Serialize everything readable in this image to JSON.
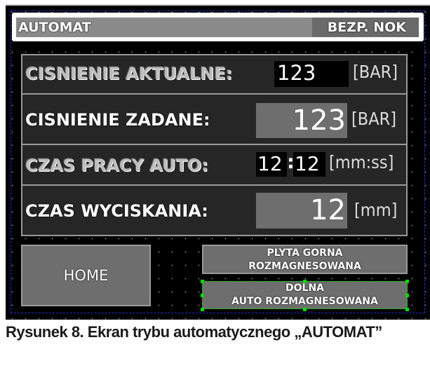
{
  "header": {
    "mode": "AUTOMAT",
    "safety_status": "BEZP. NOK"
  },
  "rows": [
    {
      "label": "CISNIENIE AKTUALNE:",
      "value": "123",
      "unit": "[BAR]"
    },
    {
      "label": "CISNIENIE ZADANE:",
      "value": "123",
      "unit": "[BAR]"
    },
    {
      "label": "CZAS PRACY AUTO:",
      "minutes": "12",
      "separator": ":",
      "seconds": "12",
      "unit": "[mm:ss]"
    },
    {
      "label": "CZAS WYCISKANIA:",
      "value": "12",
      "unit": "[mm]"
    }
  ],
  "buttons": {
    "home": "HOME",
    "upper_plate": [
      "PLYTA GORNA",
      "ROZMAGNESOWANA"
    ],
    "lower_plate": [
      "DOLNA",
      "AUTO ROZMAGNESOWANA"
    ]
  },
  "caption": "Rysunek 8. Ekran trybu automatycznego „AUTOMAT”",
  "colors": {
    "screen_bg": "#000000",
    "button": "#6e6e6e",
    "selection": "#00dd00"
  }
}
